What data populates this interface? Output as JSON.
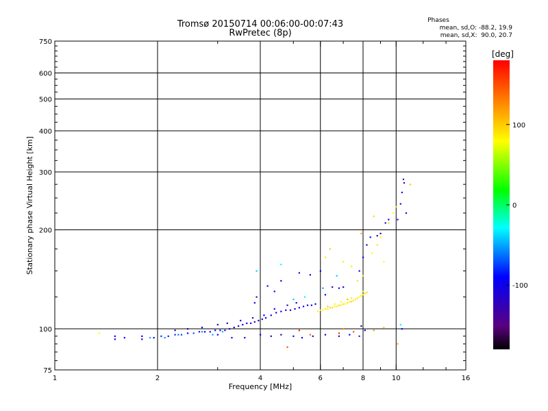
{
  "chart_data": {
    "type": "scatter",
    "title": "Tromsø 20150714 00:06:00-00:07:43",
    "subtitle": "RwPretec (8p)",
    "xlabel": "Frequency [MHz]",
    "ylabel": "Stationary phase Virtual Height [km]",
    "x_scale": "log",
    "y_scale": "log",
    "xlim": [
      1,
      16
    ],
    "ylim": [
      75,
      750
    ],
    "x_ticks": [
      "1",
      "2",
      "4",
      "6",
      "8",
      "10",
      "16"
    ],
    "x_tick_values": [
      1,
      2,
      4,
      6,
      8,
      10,
      16
    ],
    "y_ticks": [
      "75",
      "100",
      "200",
      "300",
      "400",
      "500",
      "600",
      "750"
    ],
    "y_tick_values": [
      75,
      100,
      200,
      300,
      400,
      500,
      600,
      750
    ],
    "grid": true,
    "phase_box": {
      "title": "Phases",
      "line1": "mean, sd,O: -88.2, 19.9",
      "line2": "mean, sd,X:  90.0, 20.7"
    },
    "colorbar": {
      "label": "[deg]",
      "range": [
        -180,
        180
      ],
      "ticks": [
        "100",
        "0",
        "-100"
      ],
      "tick_values": [
        100,
        0,
        -100
      ]
    },
    "series": [
      {
        "name": "",
        "points": [
          [
            1.35,
            97,
            80
          ],
          [
            1.5,
            95,
            -100
          ],
          [
            1.5,
            93,
            -100
          ],
          [
            1.6,
            94,
            -100
          ],
          [
            1.8,
            95,
            -90
          ],
          [
            1.8,
            93,
            -100
          ],
          [
            1.95,
            94,
            -95
          ],
          [
            2.05,
            95,
            -80
          ],
          [
            2.15,
            95,
            -85
          ],
          [
            2.25,
            96,
            -80
          ],
          [
            2.35,
            96,
            -75
          ],
          [
            2.45,
            97,
            -90
          ],
          [
            2.55,
            97,
            -70
          ],
          [
            2.65,
            98,
            -85
          ],
          [
            2.75,
            98,
            -100
          ],
          [
            2.85,
            98,
            -110
          ],
          [
            2.95,
            99,
            -100
          ],
          [
            3.05,
            99,
            -95
          ],
          [
            3.15,
            99,
            -110
          ],
          [
            3.25,
            100,
            -115
          ],
          [
            3.35,
            101,
            -100
          ],
          [
            3.45,
            102,
            -110
          ],
          [
            3.55,
            103,
            -95
          ],
          [
            3.65,
            104,
            -110
          ],
          [
            3.75,
            104,
            -100
          ],
          [
            3.85,
            105,
            -120
          ],
          [
            3.95,
            106,
            -100
          ],
          [
            4.05,
            107,
            -110
          ],
          [
            4.15,
            108,
            -90
          ],
          [
            4.3,
            110,
            -100
          ],
          [
            4.45,
            112,
            -110
          ],
          [
            4.6,
            113,
            -100
          ],
          [
            4.75,
            114,
            -100
          ],
          [
            4.9,
            114,
            -110
          ],
          [
            5.05,
            115,
            -100
          ],
          [
            5.2,
            116,
            -95
          ],
          [
            5.35,
            117,
            -110
          ],
          [
            5.5,
            118,
            -100
          ],
          [
            5.65,
            118,
            -110
          ],
          [
            5.8,
            119,
            -105
          ],
          [
            2.25,
            99,
            -110
          ],
          [
            2.45,
            100,
            -120
          ],
          [
            2.7,
            101,
            -105
          ],
          [
            3.0,
            103,
            -120
          ],
          [
            3.2,
            104,
            -110
          ],
          [
            3.5,
            106,
            -100
          ],
          [
            3.8,
            108,
            -110
          ],
          [
            4.1,
            110,
            -90
          ],
          [
            4.4,
            115,
            -100
          ],
          [
            4.8,
            118,
            -120
          ],
          [
            5.1,
            120,
            -110
          ],
          [
            4.0,
            96,
            -100
          ],
          [
            4.3,
            95,
            -110
          ],
          [
            4.6,
            96,
            -120
          ],
          [
            5.0,
            95,
            -100
          ],
          [
            5.3,
            94,
            -90
          ],
          [
            5.7,
            95,
            -100
          ],
          [
            6.2,
            96,
            -110
          ],
          [
            6.8,
            95,
            -100
          ],
          [
            7.3,
            96,
            -90
          ],
          [
            7.8,
            95,
            -80
          ],
          [
            3.6,
            94,
            -100
          ],
          [
            3.3,
            94,
            -110
          ],
          [
            3.0,
            96,
            -90
          ],
          [
            4.2,
            135,
            -110
          ],
          [
            4.4,
            130,
            -100
          ],
          [
            4.6,
            140,
            -90
          ],
          [
            5.2,
            148,
            -110
          ],
          [
            5.6,
            146,
            -100
          ],
          [
            6.0,
            150,
            -100
          ],
          [
            6.5,
            134,
            -120
          ],
          [
            6.8,
            133,
            -100
          ],
          [
            7.0,
            134,
            -110
          ],
          [
            6.2,
            127,
            -100
          ],
          [
            3.9,
            125,
            -110
          ],
          [
            3.85,
            120,
            -100
          ],
          [
            8.4,
            190,
            -100
          ],
          [
            8.8,
            192,
            -110
          ],
          [
            9.0,
            195,
            -120
          ],
          [
            9.3,
            210,
            -120
          ],
          [
            9.5,
            215,
            -100
          ],
          [
            10.1,
            215,
            -110
          ],
          [
            10.3,
            240,
            -110
          ],
          [
            10.4,
            260,
            -120
          ],
          [
            10.5,
            285,
            -140
          ],
          [
            10.55,
            278,
            -130
          ],
          [
            10.7,
            225,
            -120
          ],
          [
            8.2,
            180,
            -100
          ],
          [
            8.0,
            165,
            -110
          ],
          [
            7.8,
            150,
            -100
          ],
          [
            7.9,
            102,
            -110
          ],
          [
            8.1,
            99,
            -100
          ],
          [
            10.4,
            100,
            -90
          ],
          [
            5.0,
            123,
            -40
          ],
          [
            5.4,
            125,
            -30
          ],
          [
            6.1,
            133,
            -50
          ],
          [
            6.7,
            145,
            -40
          ],
          [
            4.6,
            157,
            -30
          ],
          [
            3.9,
            150,
            -40
          ],
          [
            2.7,
            98,
            -55
          ],
          [
            2.9,
            96,
            -50
          ],
          [
            3.1,
            98,
            -45
          ],
          [
            2.3,
            96,
            -60
          ],
          [
            2.1,
            94,
            -55
          ],
          [
            1.9,
            94,
            -50
          ],
          [
            5.9,
            113,
            85
          ],
          [
            6.0,
            114,
            90
          ],
          [
            6.1,
            114,
            80
          ],
          [
            6.2,
            115,
            90
          ],
          [
            6.3,
            115,
            85
          ],
          [
            6.4,
            116,
            95
          ],
          [
            6.5,
            116,
            90
          ],
          [
            6.6,
            117,
            85
          ],
          [
            6.7,
            117,
            90
          ],
          [
            6.8,
            118,
            95
          ],
          [
            6.9,
            118,
            85
          ],
          [
            7.0,
            119,
            90
          ],
          [
            7.1,
            119,
            80
          ],
          [
            7.2,
            120,
            90
          ],
          [
            7.3,
            121,
            85
          ],
          [
            7.4,
            121,
            95
          ],
          [
            7.5,
            122,
            90
          ],
          [
            7.6,
            123,
            85
          ],
          [
            7.7,
            124,
            90
          ],
          [
            7.8,
            125,
            80
          ],
          [
            7.9,
            126,
            90
          ],
          [
            8.0,
            127,
            85
          ],
          [
            8.1,
            128,
            90
          ],
          [
            8.2,
            129,
            95
          ],
          [
            6.6,
            119,
            75
          ],
          [
            6.9,
            121,
            80
          ],
          [
            7.4,
            124,
            70
          ],
          [
            8.0,
            130,
            60
          ],
          [
            6.3,
            117,
            100
          ],
          [
            7.2,
            123,
            105
          ],
          [
            7.0,
            160,
            70
          ],
          [
            7.4,
            155,
            85
          ],
          [
            7.7,
            140,
            90
          ],
          [
            8.0,
            145,
            75
          ],
          [
            8.5,
            170,
            80
          ],
          [
            8.8,
            180,
            90
          ],
          [
            9.0,
            190,
            85
          ],
          [
            9.5,
            210,
            95
          ],
          [
            9.8,
            225,
            80
          ],
          [
            10.0,
            235,
            90
          ],
          [
            11.0,
            275,
            100
          ],
          [
            9.2,
            160,
            80
          ],
          [
            6.4,
            175,
            100
          ],
          [
            6.2,
            165,
            90
          ],
          [
            7.9,
            195,
            110
          ],
          [
            8.6,
            220,
            95
          ],
          [
            7.0,
            100,
            130
          ],
          [
            7.5,
            98,
            150
          ],
          [
            6.8,
            97,
            160
          ],
          [
            5.6,
            96,
            140
          ],
          [
            5.2,
            99,
            170
          ],
          [
            4.8,
            88,
            150
          ],
          [
            10.1,
            90,
            110
          ],
          [
            9.2,
            101,
            100
          ],
          [
            8.6,
            99,
            120
          ],
          [
            10.3,
            103,
            -20
          ]
        ]
      }
    ]
  }
}
